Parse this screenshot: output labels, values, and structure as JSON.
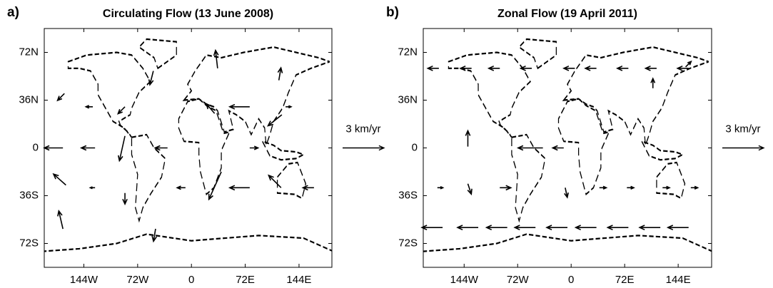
{
  "chart_data": [
    {
      "type": "quiver",
      "panel_label": "a)",
      "title": "Circulating Flow (13 June 2008)",
      "color": "#000000",
      "xlim": [
        -197,
        188
      ],
      "ylim": [
        -90,
        90
      ],
      "xticks": [
        {
          "value": -144,
          "label": "144W"
        },
        {
          "value": -72,
          "label": "72W"
        },
        0,
        {
          "value": 72,
          "label": "72E"
        },
        {
          "value": 144,
          "label": "144E"
        }
      ],
      "yticks": [
        {
          "value": 72,
          "label": "72N"
        },
        {
          "value": 36,
          "label": "36N"
        },
        0,
        {
          "value": -36,
          "label": "36S"
        },
        {
          "value": -72,
          "label": "72S"
        }
      ],
      "vectors": {
        "x": [
          -172,
          -129,
          -32,
          78,
          -132,
          78,
          126,
          -89,
          78,
          -8,
          -129,
          120,
          164,
          40,
          -89,
          -168,
          -172,
          121,
          -170,
          117,
          35,
          -51,
          -89,
          -48,
          31
        ],
        "y": [
          0,
          0,
          0,
          0,
          31,
          31,
          31,
          31,
          -30,
          -30,
          -30,
          -30,
          -30,
          -18,
          9,
          -28,
          -61,
          25,
          41,
          51,
          60,
          58,
          -34,
          -61,
          26
        ],
        "u": [
          -1.35,
          -1.0,
          -0.9,
          0.6,
          -0.5,
          -1.45,
          0.4,
          -0.5,
          -1.45,
          -0.6,
          -0.35,
          -0.9,
          -0.8,
          -0.9,
          -0.4,
          -0.9,
          -0.3,
          -1.0,
          -0.5,
          0.15,
          -0.15,
          -0.25,
          0,
          -0.15,
          -0.6
        ],
        "v": [
          0,
          0,
          0,
          0,
          0,
          0,
          0,
          -0.5,
          0,
          0,
          0,
          0.9,
          0,
          -2.0,
          -1.8,
          0.8,
          1.3,
          -0.8,
          -0.5,
          0.9,
          1.3,
          -1.0,
          -0.8,
          -0.9,
          0.7
        ]
      },
      "reference_vector": {
        "value": 3,
        "label": "3 km/yr"
      }
    },
    {
      "type": "quiver",
      "panel_label": "b)",
      "title": "Zonal Flow (19 April 2011)",
      "color": "#000000",
      "xlim": [
        -199,
        189
      ],
      "ylim": [
        -90,
        90
      ],
      "xticks": [
        {
          "value": -144,
          "label": "144W"
        },
        {
          "value": -72,
          "label": "72W"
        },
        0,
        {
          "value": 72,
          "label": "72E"
        },
        {
          "value": 144,
          "label": "144E"
        }
      ],
      "yticks": [
        {
          "value": 72,
          "label": "72N"
        },
        {
          "value": 36,
          "label": "36N"
        },
        0,
        {
          "value": -36,
          "label": "36S"
        },
        {
          "value": -72,
          "label": "72S"
        }
      ],
      "vectors": {
        "x": [
          -173,
          -125,
          -86,
          -48,
          -5,
          34,
          77,
          120,
          158,
          -178,
          -134,
          -96,
          -53,
          5,
          34,
          77,
          115,
          158,
          -38,
          -10,
          -139,
          -180,
          -96,
          38,
          75,
          123,
          161,
          -139,
          -8,
          110,
          154
        ],
        "y": [
          -60,
          -60,
          -60,
          -60,
          -60,
          -60,
          -60,
          -60,
          -60,
          60,
          60,
          60,
          60,
          60,
          60,
          60,
          60,
          60,
          0,
          0,
          1,
          -30,
          -30,
          -30,
          -30,
          -30,
          -30,
          -27,
          -30,
          45,
          61
        ],
        "u": [
          -1.5,
          -1.5,
          -1.5,
          -1.5,
          -1.5,
          -1.5,
          -1.5,
          -1.5,
          -1.5,
          -0.8,
          -0.8,
          -0.8,
          -0.8,
          -0.8,
          -0.8,
          -0.8,
          -0.8,
          -0.8,
          -1.8,
          -0.8,
          0,
          0.4,
          0.8,
          0.5,
          0.5,
          0.5,
          0.5,
          0.25,
          0.15,
          0,
          0.4
        ],
        "v": [
          0,
          0,
          0,
          0,
          0,
          0,
          0,
          0,
          0,
          0,
          0,
          0,
          0,
          0,
          0,
          0,
          0,
          0,
          0,
          0,
          1.15,
          0,
          0,
          0,
          0,
          0,
          0,
          -0.75,
          -0.7,
          0.7,
          0.4
        ]
      },
      "reference_vector": {
        "value": 3,
        "label": "3 km/yr"
      }
    }
  ]
}
